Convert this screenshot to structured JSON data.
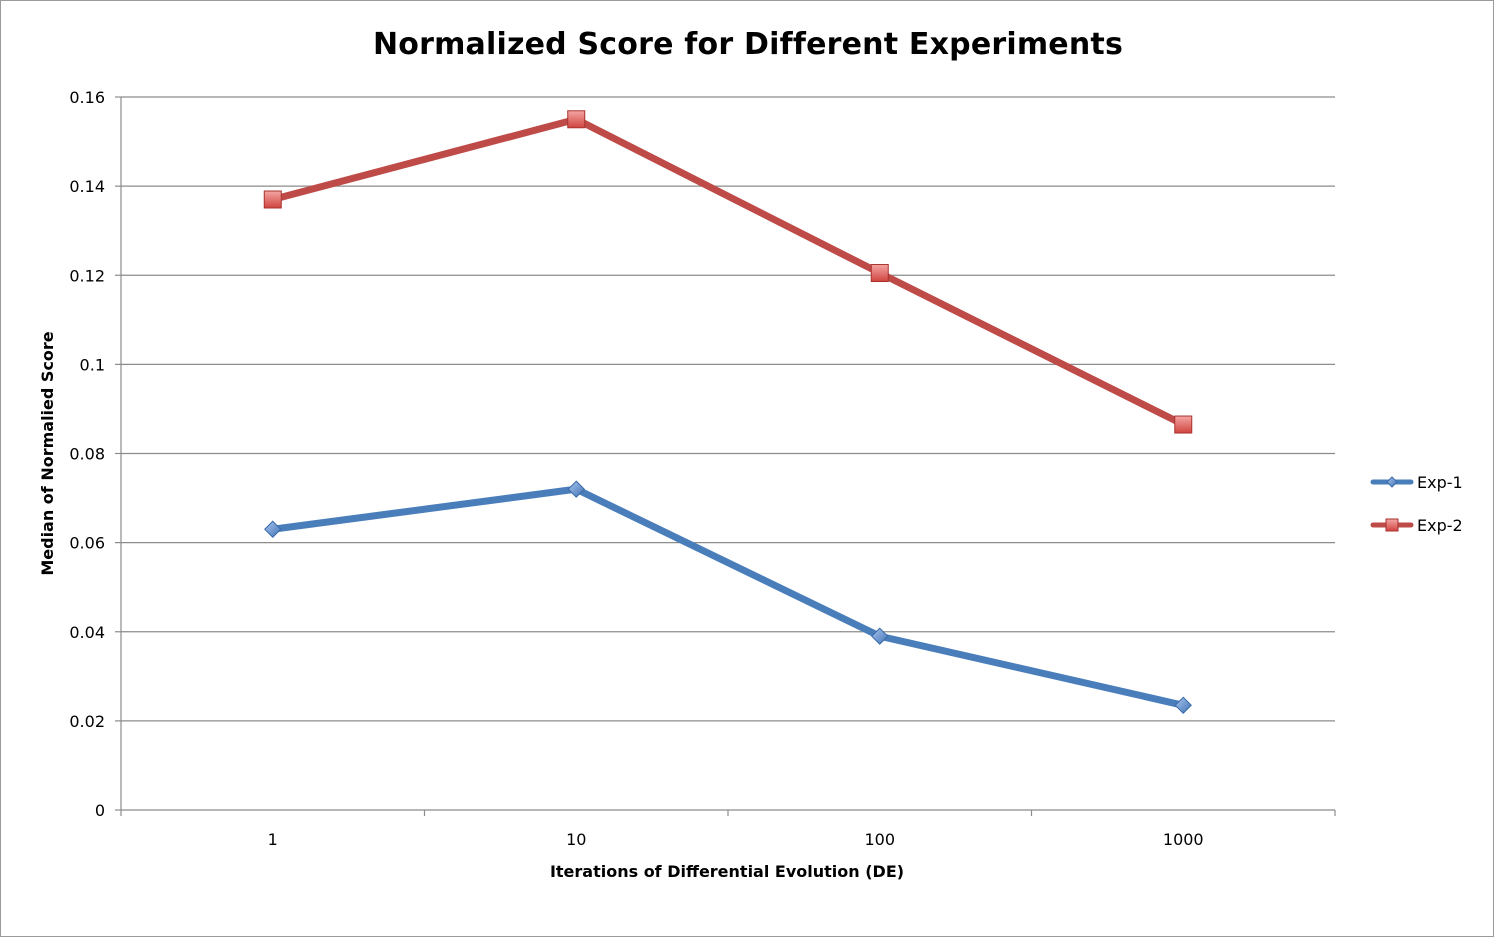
{
  "chart_data": {
    "type": "line",
    "title": "Normalized Score for Different Experiments",
    "xlabel": "Iterations of Differential Evolution (DE)",
    "ylabel": "Median of Normalied  Score",
    "categories": [
      "1",
      "10",
      "100",
      "1000"
    ],
    "ylim": [
      0,
      0.16
    ],
    "yticks": [
      "0",
      "0.02",
      "0.04",
      "0.06",
      "0.08",
      "0.1",
      "0.12",
      "0.14",
      "0.16"
    ],
    "grid": true,
    "legend_position": "right",
    "series": [
      {
        "name": "Exp-1",
        "values": [
          0.063,
          0.072,
          0.039,
          0.0235
        ],
        "color": "#4a7ebb",
        "marker": "diamond"
      },
      {
        "name": "Exp-2",
        "values": [
          0.137,
          0.155,
          0.1205,
          0.0865
        ],
        "color": "#be4b48",
        "marker": "square"
      }
    ]
  }
}
